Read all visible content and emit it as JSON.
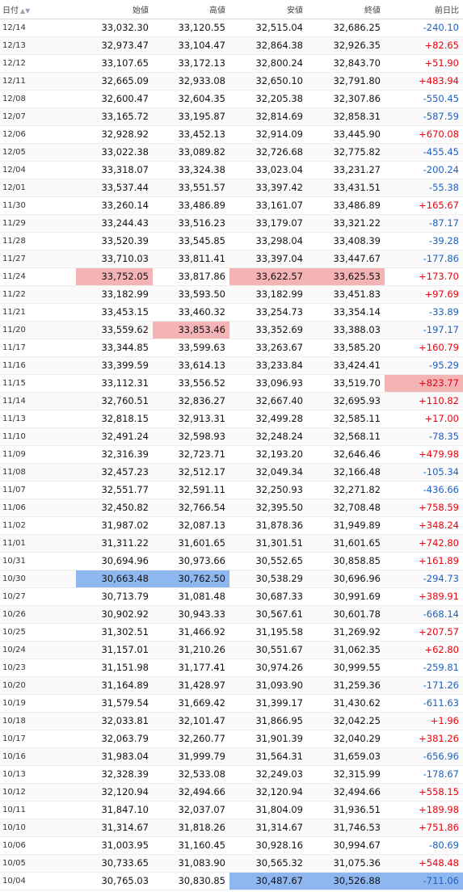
{
  "headers": {
    "date": "日付",
    "open": "始値",
    "high": "高値",
    "low": "安値",
    "close": "終値",
    "change": "前日比"
  },
  "colors": {
    "positive": "#e8000b",
    "negative": "#1f5fbf",
    "highlight_red": "#f4b3b5",
    "highlight_blue": "#8fb7ef"
  },
  "sort_icons": "▲▼",
  "rows": [
    {
      "date": "12/14",
      "open": "33,032.30",
      "high": "33,120.55",
      "low": "32,515.04",
      "close": "32,686.25",
      "change": "-240.10"
    },
    {
      "date": "12/13",
      "open": "32,973.47",
      "high": "33,104.47",
      "low": "32,864.38",
      "close": "32,926.35",
      "change": "+82.65"
    },
    {
      "date": "12/12",
      "open": "33,107.65",
      "high": "33,172.13",
      "low": "32,800.24",
      "close": "32,843.70",
      "change": "+51.90"
    },
    {
      "date": "12/11",
      "open": "32,665.09",
      "high": "32,933.08",
      "low": "32,650.10",
      "close": "32,791.80",
      "change": "+483.94"
    },
    {
      "date": "12/08",
      "open": "32,600.47",
      "high": "32,604.35",
      "low": "32,205.38",
      "close": "32,307.86",
      "change": "-550.45"
    },
    {
      "date": "12/07",
      "open": "33,165.72",
      "high": "33,195.87",
      "low": "32,814.69",
      "close": "32,858.31",
      "change": "-587.59"
    },
    {
      "date": "12/06",
      "open": "32,928.92",
      "high": "33,452.13",
      "low": "32,914.09",
      "close": "33,445.90",
      "change": "+670.08"
    },
    {
      "date": "12/05",
      "open": "33,022.38",
      "high": "33,089.82",
      "low": "32,726.68",
      "close": "32,775.82",
      "change": "-455.45"
    },
    {
      "date": "12/04",
      "open": "33,318.07",
      "high": "33,324.38",
      "low": "33,023.04",
      "close": "33,231.27",
      "change": "-200.24"
    },
    {
      "date": "12/01",
      "open": "33,537.44",
      "high": "33,551.57",
      "low": "33,397.42",
      "close": "33,431.51",
      "change": "-55.38"
    },
    {
      "date": "11/30",
      "open": "33,260.14",
      "high": "33,486.89",
      "low": "33,161.07",
      "close": "33,486.89",
      "change": "+165.67"
    },
    {
      "date": "11/29",
      "open": "33,244.43",
      "high": "33,516.23",
      "low": "33,179.07",
      "close": "33,321.22",
      "change": "-87.17"
    },
    {
      "date": "11/28",
      "open": "33,520.39",
      "high": "33,545.85",
      "low": "33,298.04",
      "close": "33,408.39",
      "change": "-39.28"
    },
    {
      "date": "11/27",
      "open": "33,710.03",
      "high": "33,811.41",
      "low": "33,397.04",
      "close": "33,447.67",
      "change": "-177.86"
    },
    {
      "date": "11/24",
      "open": "33,752.05",
      "high": "33,817.86",
      "low": "33,622.57",
      "close": "33,625.53",
      "change": "+173.70",
      "hl": {
        "open": "red",
        "low": "red",
        "close": "red"
      }
    },
    {
      "date": "11/22",
      "open": "33,182.99",
      "high": "33,593.50",
      "low": "33,182.99",
      "close": "33,451.83",
      "change": "+97.69"
    },
    {
      "date": "11/21",
      "open": "33,453.15",
      "high": "33,460.32",
      "low": "33,254.73",
      "close": "33,354.14",
      "change": "-33.89"
    },
    {
      "date": "11/20",
      "open": "33,559.62",
      "high": "33,853.46",
      "low": "33,352.69",
      "close": "33,388.03",
      "change": "-197.17",
      "hl": {
        "high": "red"
      }
    },
    {
      "date": "11/17",
      "open": "33,344.85",
      "high": "33,599.63",
      "low": "33,263.67",
      "close": "33,585.20",
      "change": "+160.79"
    },
    {
      "date": "11/16",
      "open": "33,399.59",
      "high": "33,614.13",
      "low": "33,233.84",
      "close": "33,424.41",
      "change": "-95.29"
    },
    {
      "date": "11/15",
      "open": "33,112.31",
      "high": "33,556.52",
      "low": "33,096.93",
      "close": "33,519.70",
      "change": "+823.77",
      "hl": {
        "change": "red"
      }
    },
    {
      "date": "11/14",
      "open": "32,760.51",
      "high": "32,836.27",
      "low": "32,667.40",
      "close": "32,695.93",
      "change": "+110.82"
    },
    {
      "date": "11/13",
      "open": "32,818.15",
      "high": "32,913.31",
      "low": "32,499.28",
      "close": "32,585.11",
      "change": "+17.00"
    },
    {
      "date": "11/10",
      "open": "32,491.24",
      "high": "32,598.93",
      "low": "32,248.24",
      "close": "32,568.11",
      "change": "-78.35"
    },
    {
      "date": "11/09",
      "open": "32,316.39",
      "high": "32,723.71",
      "low": "32,193.20",
      "close": "32,646.46",
      "change": "+479.98"
    },
    {
      "date": "11/08",
      "open": "32,457.23",
      "high": "32,512.17",
      "low": "32,049.34",
      "close": "32,166.48",
      "change": "-105.34"
    },
    {
      "date": "11/07",
      "open": "32,551.77",
      "high": "32,591.11",
      "low": "32,250.93",
      "close": "32,271.82",
      "change": "-436.66"
    },
    {
      "date": "11/06",
      "open": "32,450.82",
      "high": "32,766.54",
      "low": "32,395.50",
      "close": "32,708.48",
      "change": "+758.59"
    },
    {
      "date": "11/02",
      "open": "31,987.02",
      "high": "32,087.13",
      "low": "31,878.36",
      "close": "31,949.89",
      "change": "+348.24"
    },
    {
      "date": "11/01",
      "open": "31,311.22",
      "high": "31,601.65",
      "low": "31,301.51",
      "close": "31,601.65",
      "change": "+742.80"
    },
    {
      "date": "10/31",
      "open": "30,694.96",
      "high": "30,973.66",
      "low": "30,552.65",
      "close": "30,858.85",
      "change": "+161.89"
    },
    {
      "date": "10/30",
      "open": "30,663.48",
      "high": "30,762.50",
      "low": "30,538.29",
      "close": "30,696.96",
      "change": "-294.73",
      "hl": {
        "open": "blue",
        "high": "blue"
      }
    },
    {
      "date": "10/27",
      "open": "30,713.79",
      "high": "31,081.48",
      "low": "30,687.33",
      "close": "30,991.69",
      "change": "+389.91"
    },
    {
      "date": "10/26",
      "open": "30,902.92",
      "high": "30,943.33",
      "low": "30,567.61",
      "close": "30,601.78",
      "change": "-668.14"
    },
    {
      "date": "10/25",
      "open": "31,302.51",
      "high": "31,466.92",
      "low": "31,195.58",
      "close": "31,269.92",
      "change": "+207.57"
    },
    {
      "date": "10/24",
      "open": "31,157.01",
      "high": "31,210.26",
      "low": "30,551.67",
      "close": "31,062.35",
      "change": "+62.80"
    },
    {
      "date": "10/23",
      "open": "31,151.98",
      "high": "31,177.41",
      "low": "30,974.26",
      "close": "30,999.55",
      "change": "-259.81"
    },
    {
      "date": "10/20",
      "open": "31,164.89",
      "high": "31,428.97",
      "low": "31,093.90",
      "close": "31,259.36",
      "change": "-171.26"
    },
    {
      "date": "10/19",
      "open": "31,579.54",
      "high": "31,669.42",
      "low": "31,399.17",
      "close": "31,430.62",
      "change": "-611.63"
    },
    {
      "date": "10/18",
      "open": "32,033.81",
      "high": "32,101.47",
      "low": "31,866.95",
      "close": "32,042.25",
      "change": "+1.96"
    },
    {
      "date": "10/17",
      "open": "32,063.79",
      "high": "32,260.77",
      "low": "31,901.39",
      "close": "32,040.29",
      "change": "+381.26"
    },
    {
      "date": "10/16",
      "open": "31,983.04",
      "high": "31,999.79",
      "low": "31,564.31",
      "close": "31,659.03",
      "change": "-656.96"
    },
    {
      "date": "10/13",
      "open": "32,328.39",
      "high": "32,533.08",
      "low": "32,249.03",
      "close": "32,315.99",
      "change": "-178.67"
    },
    {
      "date": "10/12",
      "open": "32,120.94",
      "high": "32,494.66",
      "low": "32,120.94",
      "close": "32,494.66",
      "change": "+558.15"
    },
    {
      "date": "10/11",
      "open": "31,847.10",
      "high": "32,037.07",
      "low": "31,804.09",
      "close": "31,936.51",
      "change": "+189.98"
    },
    {
      "date": "10/10",
      "open": "31,314.67",
      "high": "31,818.26",
      "low": "31,314.67",
      "close": "31,746.53",
      "change": "+751.86"
    },
    {
      "date": "10/06",
      "open": "31,003.95",
      "high": "31,160.45",
      "low": "30,928.16",
      "close": "30,994.67",
      "change": "-80.69"
    },
    {
      "date": "10/05",
      "open": "30,733.65",
      "high": "31,083.90",
      "low": "30,565.32",
      "close": "31,075.36",
      "change": "+548.48"
    },
    {
      "date": "10/04",
      "open": "30,765.03",
      "high": "30,830.85",
      "low": "30,487.67",
      "close": "30,526.88",
      "change": "-711.06",
      "hl": {
        "low": "blue",
        "close": "blue",
        "change": "blue"
      }
    }
  ]
}
